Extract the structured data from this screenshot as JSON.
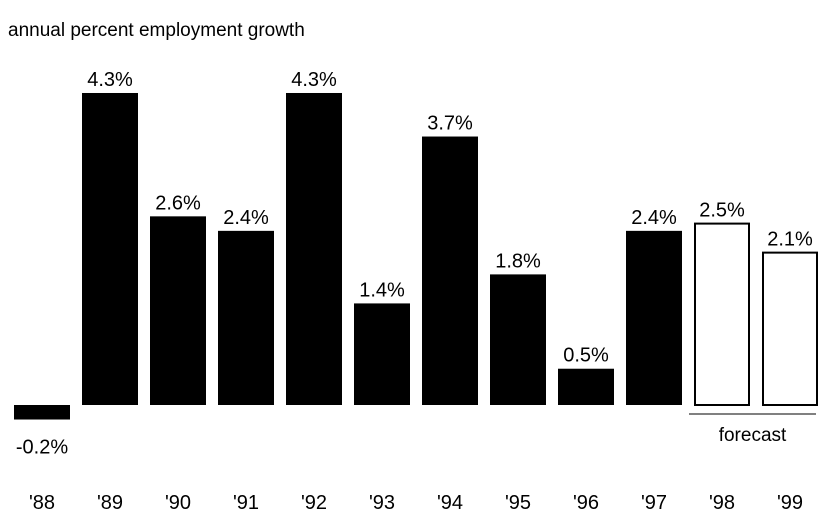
{
  "chart_data": {
    "type": "bar",
    "title": "annual percent employment growth",
    "categories": [
      "'88",
      "'89",
      "'90",
      "'91",
      "'92",
      "'93",
      "'94",
      "'95",
      "'96",
      "'97",
      "'98",
      "'99"
    ],
    "values": [
      -0.2,
      4.3,
      2.6,
      2.4,
      4.3,
      1.4,
      3.7,
      1.8,
      0.5,
      2.4,
      2.5,
      2.1
    ],
    "value_labels": [
      "-0.2%",
      "4.3%",
      "2.6%",
      "2.4%",
      "4.3%",
      "1.4%",
      "3.7%",
      "1.8%",
      "0.5%",
      "2.4%",
      "2.5%",
      "2.1%"
    ],
    "forecast": [
      false,
      false,
      false,
      false,
      false,
      false,
      false,
      false,
      false,
      false,
      true,
      true
    ],
    "forecast_label": "forecast",
    "xlabel": "",
    "ylabel": "",
    "ylim": [
      -0.2,
      4.3
    ],
    "grid": false,
    "colors": {
      "actual_fill": "#000000",
      "forecast_fill": "#ffffff",
      "forecast_stroke": "#000000"
    }
  }
}
